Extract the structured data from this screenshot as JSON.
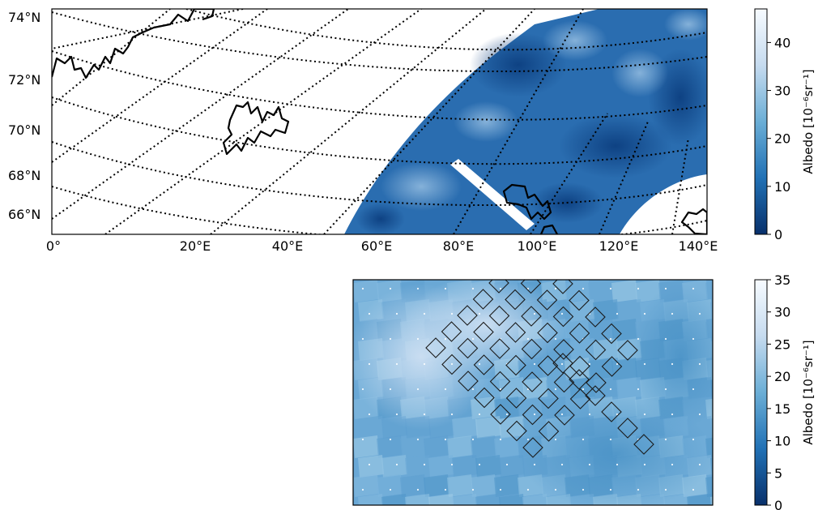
{
  "top_map": {
    "lat_ticks": [
      "74°N",
      "72°N",
      "70°N",
      "68°N",
      "66°N"
    ],
    "lon_ticks": [
      "0°",
      "20°E",
      "40°E",
      "60°E",
      "80°E",
      "100°E",
      "120°E",
      "140°E"
    ],
    "colorbar": {
      "label": "Albedo [10⁻⁶sr⁻¹]",
      "ticks": [
        "0",
        "10",
        "20",
        "30",
        "40"
      ],
      "range": [
        0,
        47
      ],
      "colormap": "Blues_r"
    }
  },
  "bottom_map": {
    "colorbar": {
      "label": "Albedo [10⁻⁶sr⁻¹]",
      "ticks": [
        "0",
        "5",
        "10",
        "15",
        "20",
        "25",
        "30",
        "35"
      ],
      "range": [
        0,
        35
      ],
      "colormap": "Blues_r"
    },
    "footprint_grid": {
      "rows": 7,
      "cols": 7
    }
  },
  "colors": {
    "colormap_dark": "#08306b",
    "colormap_mid": "#4a90c4",
    "colormap_light": "#f7fbff",
    "coastline": "#000000",
    "footprint_outline": "#1a1a1a"
  }
}
